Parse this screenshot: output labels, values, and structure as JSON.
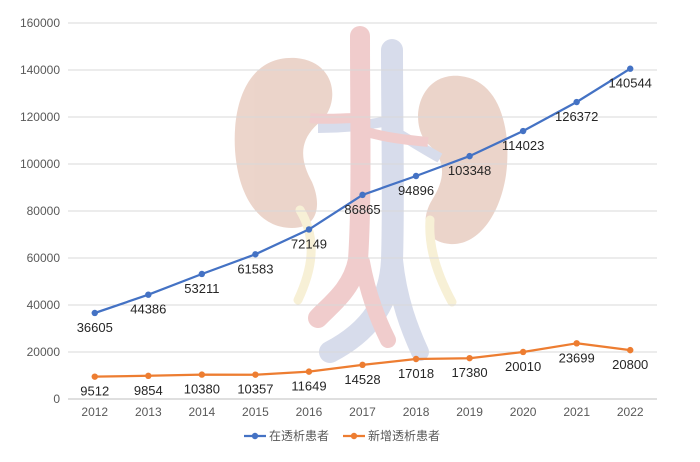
{
  "chart_data": {
    "type": "line",
    "title": "",
    "xlabel": "",
    "ylabel": "",
    "categories": [
      "2012",
      "2013",
      "2014",
      "2015",
      "2016",
      "2017",
      "2018",
      "2019",
      "2020",
      "2021",
      "2022"
    ],
    "ylim": [
      0,
      160000
    ],
    "yticks": [
      0,
      20000,
      40000,
      60000,
      80000,
      100000,
      120000,
      140000,
      160000
    ],
    "grid": true,
    "legend_position": "bottom",
    "series": [
      {
        "name": "在透析患者",
        "color": "#4472c4",
        "values": [
          36605,
          44386,
          53211,
          61583,
          72149,
          86865,
          94896,
          103348,
          114023,
          126372,
          140544
        ]
      },
      {
        "name": "新增透析患者",
        "color": "#ed7d31",
        "values": [
          9512,
          9854,
          10380,
          10357,
          11649,
          14528,
          17018,
          17380,
          20010,
          23699,
          20800
        ]
      }
    ],
    "background_illustration": "kidneys-icon"
  }
}
